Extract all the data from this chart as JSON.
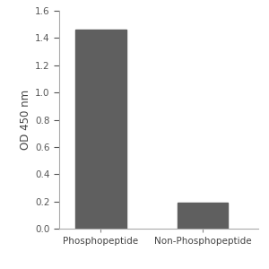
{
  "categories": [
    "Phosphopeptide",
    "Non-Phosphopeptide"
  ],
  "values": [
    1.46,
    0.19
  ],
  "bar_color": "#5f5f5f",
  "ylabel": "OD 450 nm",
  "ylim": [
    0,
    1.6
  ],
  "yticks": [
    0,
    0.2,
    0.4,
    0.6,
    0.8,
    1.0,
    1.2,
    1.4,
    1.6
  ],
  "bar_width": 0.55,
  "background_color": "#ffffff",
  "tick_fontsize": 7.5,
  "label_fontsize": 8.5,
  "ylabel_rotation": 90
}
